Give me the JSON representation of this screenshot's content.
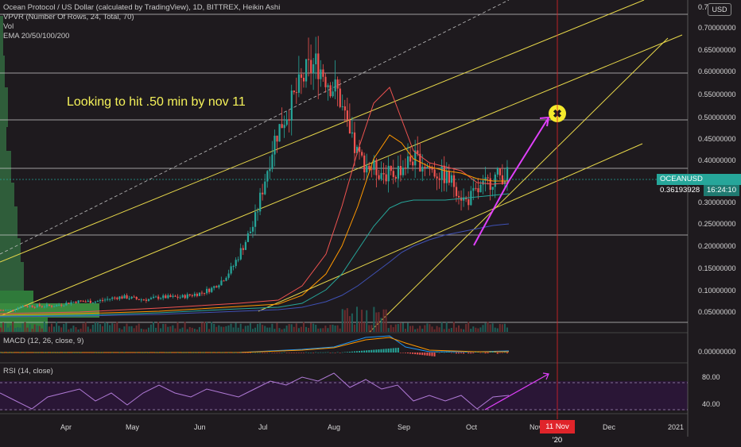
{
  "legend": {
    "title": "Ocean Protocol / US Dollar (calculated by TradingView), 1D, BITTREX, Heikin Ashi",
    "vpvr": "VPVR (Number Of Rows, 24, Total, 70)",
    "vol": "Vol",
    "ema": "EMA 20/50/100/200"
  },
  "currency_button": "USD",
  "annotation": "Looking to hit .50  min by nov 11",
  "price_tag": {
    "symbol": "OCEANUSD",
    "price": "0.36193928",
    "countdown": "16:24:10"
  },
  "price_axis": [
    "0.7",
    "0.70000000",
    "0.65000000",
    "0.60000000",
    "0.55000000",
    "0.50000000",
    "0.45000000",
    "0.40000000",
    "0.30000000",
    "0.25000000",
    "0.20000000",
    "0.15000000",
    "0.10000000",
    "0.05000000"
  ],
  "macd": {
    "label": "MACD (12, 26, close, 9)",
    "axis_label": "0.00000000"
  },
  "rsi": {
    "label": "RSI (14, close)",
    "levels": [
      "80.00",
      "40.00"
    ]
  },
  "time_axis": [
    "Apr",
    "May",
    "Jun",
    "Jul",
    "Aug",
    "Sep",
    "Oct",
    "Nov",
    "Dec",
    "2021"
  ],
  "time_cursor_label": "11 Nov '20",
  "colors": {
    "up": "#26a69a",
    "down": "#ef5350",
    "annotation": "#f5f25a",
    "arrow": "#e040fb",
    "cursor": "#e0242a",
    "price_tag": "#26a69a"
  },
  "chart_data": {
    "type": "candlestick",
    "price_range": [
      0.0,
      0.75
    ],
    "close_series_approx": [
      0.05,
      0.05,
      0.06,
      0.06,
      0.06,
      0.06,
      0.065,
      0.07,
      0.07,
      0.07,
      0.075,
      0.08,
      0.08,
      0.075,
      0.075,
      0.08,
      0.08,
      0.08,
      0.085,
      0.09,
      0.1,
      0.12,
      0.15,
      0.2,
      0.25,
      0.35,
      0.45,
      0.5,
      0.55,
      0.6,
      0.62,
      0.58,
      0.55,
      0.45,
      0.4,
      0.38,
      0.37,
      0.36,
      0.38,
      0.4,
      0.39,
      0.37,
      0.36,
      0.34,
      0.3,
      0.32,
      0.34,
      0.36,
      0.362
    ],
    "rsi_levels": [
      80,
      40
    ]
  }
}
